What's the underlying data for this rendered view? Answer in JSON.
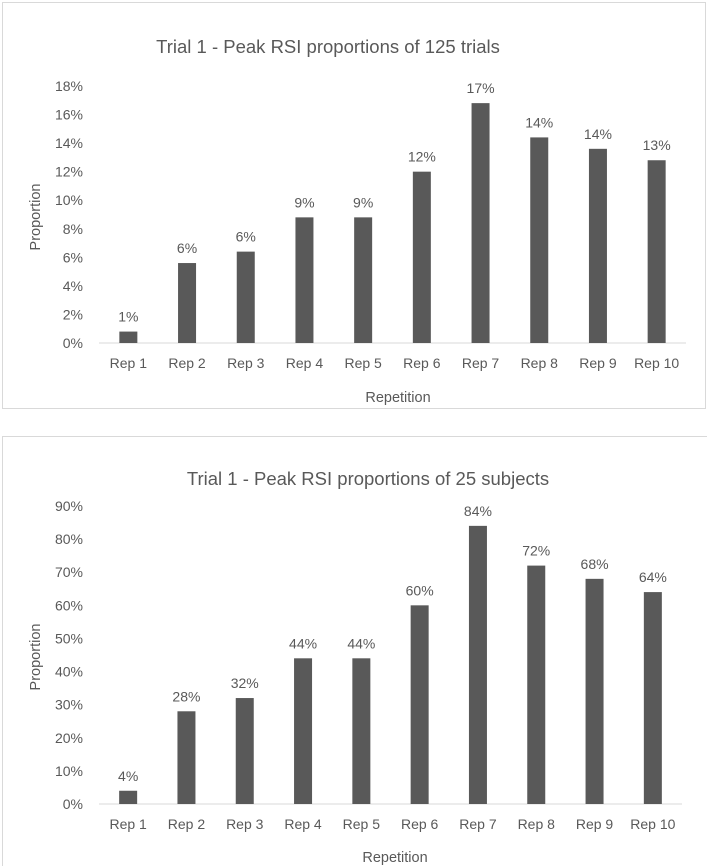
{
  "chart_data": [
    {
      "type": "bar",
      "title": "Trial 1 - Peak RSI proportions of 125 trials",
      "xlabel": "Repetition",
      "ylabel": "Proportion",
      "categories": [
        "Rep 1",
        "Rep 2",
        "Rep 3",
        "Rep 4",
        "Rep 5",
        "Rep 6",
        "Rep 7",
        "Rep 8",
        "Rep 9",
        "Rep 10"
      ],
      "values": [
        0.8,
        5.6,
        6.4,
        8.8,
        8.8,
        12.0,
        16.8,
        14.4,
        13.6,
        12.8
      ],
      "data_labels": [
        "1%",
        "6%",
        "6%",
        "9%",
        "9%",
        "12%",
        "17%",
        "14%",
        "14%",
        "13%"
      ],
      "yticks": [
        "0%",
        "2%",
        "4%",
        "6%",
        "8%",
        "10%",
        "12%",
        "14%",
        "16%",
        "18%"
      ],
      "ylim": [
        0,
        18
      ],
      "bar_color": "#595959",
      "grid": false,
      "legend": "none"
    },
    {
      "type": "bar",
      "title": "Trial 1 - Peak RSI proportions of 25 subjects",
      "xlabel": "Repetition",
      "ylabel": "Proportion",
      "categories": [
        "Rep 1",
        "Rep 2",
        "Rep 3",
        "Rep 4",
        "Rep 5",
        "Rep 6",
        "Rep 7",
        "Rep 8",
        "Rep 9",
        "Rep 10"
      ],
      "values": [
        4,
        28,
        32,
        44,
        44,
        60,
        84,
        72,
        68,
        64
      ],
      "data_labels": [
        "4%",
        "28%",
        "32%",
        "44%",
        "44%",
        "60%",
        "84%",
        "72%",
        "68%",
        "64%"
      ],
      "yticks": [
        "0%",
        "10%",
        "20%",
        "30%",
        "40%",
        "50%",
        "60%",
        "70%",
        "80%",
        "90%"
      ],
      "ylim": [
        0,
        90
      ],
      "bar_color": "#595959",
      "grid": false,
      "legend": "none"
    }
  ]
}
